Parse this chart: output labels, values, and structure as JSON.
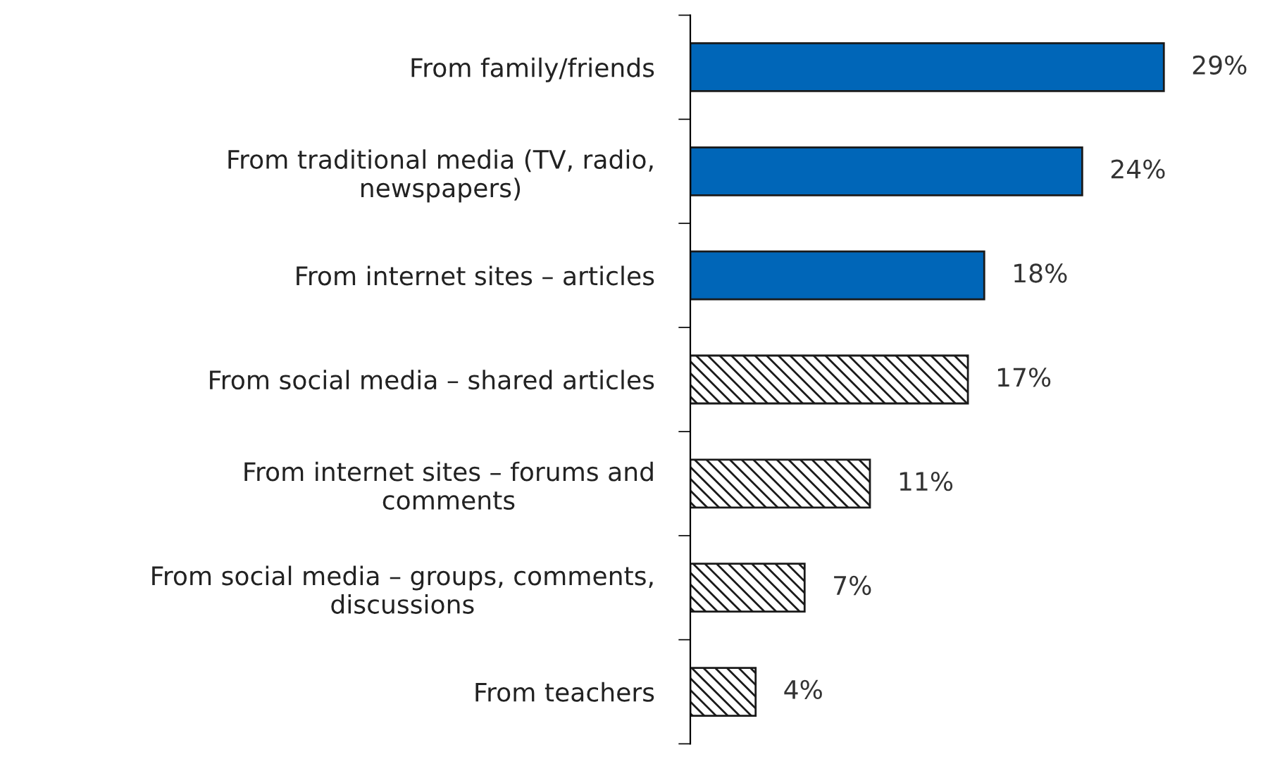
{
  "chart_data": {
    "type": "bar",
    "orientation": "horizontal",
    "categories": [
      "From family/friends",
      "From traditional media (TV, radio,\nnewspapers)",
      "From internet sites – articles",
      "From social media – shared articles",
      "From internet sites – forums and\ncomments",
      "From social media – groups, comments,\ndiscussions",
      "From teachers"
    ],
    "values": [
      29,
      24,
      18,
      17,
      11,
      7,
      4
    ],
    "colors": [
      "#0066b8",
      "#0066b8",
      "#0066b8",
      "#1a1a1a",
      "#1a1a1a",
      "#1a1a1a",
      "#1a1a1a"
    ],
    "value_labels": [
      "29%",
      "24%",
      "18%",
      "17%",
      "11%",
      "7%",
      "4%"
    ]
  }
}
